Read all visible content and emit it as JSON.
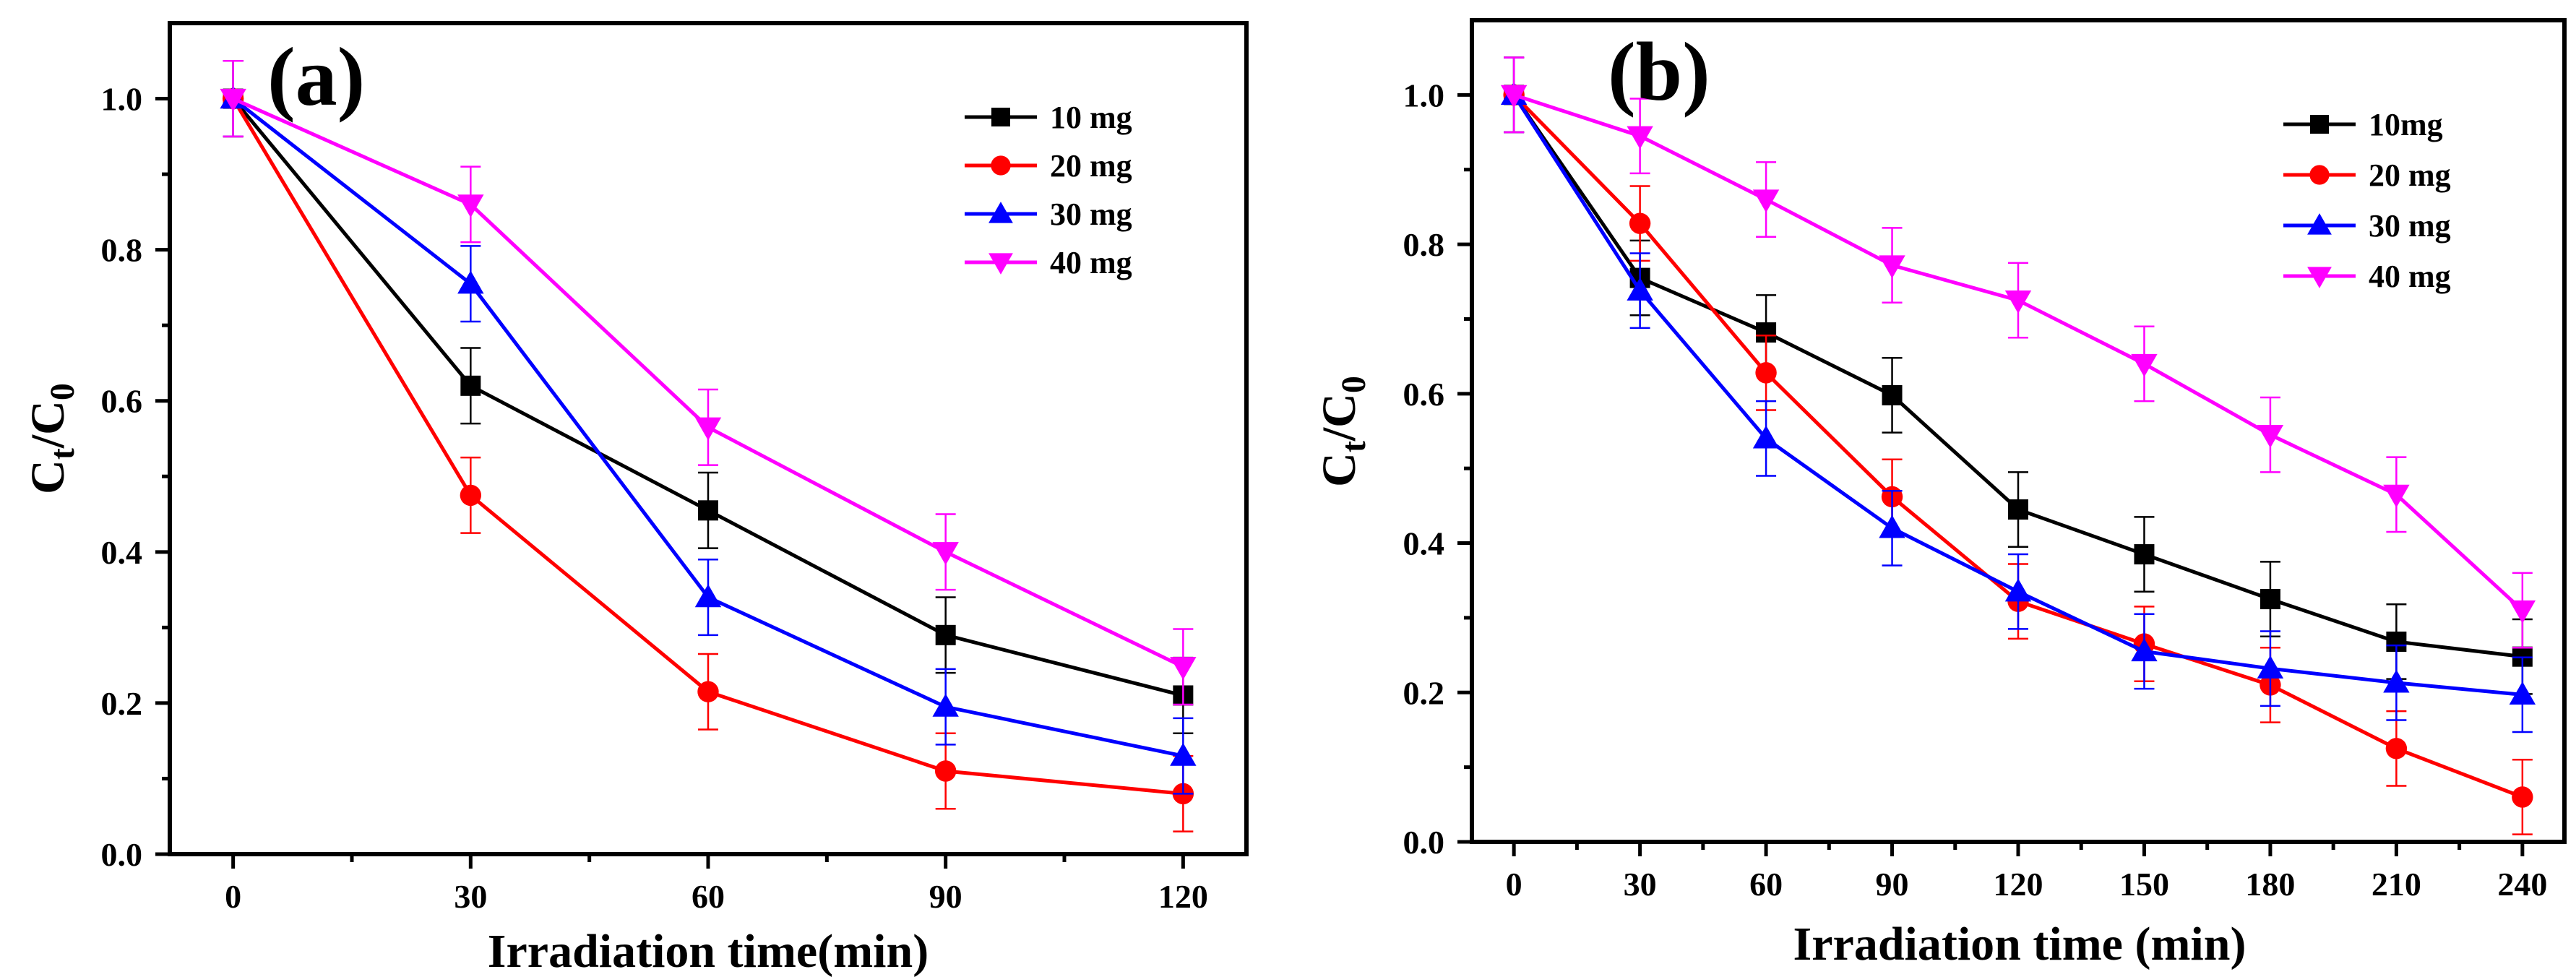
{
  "chart_data": [
    {
      "type": "line",
      "panel_label": "(a)",
      "xlabel": "Irradiation time(min)",
      "ylabel_main": "C",
      "ylabel_sub1": "t",
      "ylabel_mid": "/C",
      "ylabel_sub2": "0",
      "xlim": [
        -8,
        128
      ],
      "ylim": [
        0,
        1.1
      ],
      "xticks": [
        0,
        30,
        60,
        90,
        120
      ],
      "yticks": [
        0.0,
        0.2,
        0.4,
        0.6,
        0.8,
        1.0
      ],
      "legend_position": "top-right",
      "x": [
        0,
        30,
        60,
        90,
        120
      ],
      "series": [
        {
          "name": "10 mg",
          "color": "#000000",
          "marker": "square",
          "values": [
            1.0,
            0.62,
            0.455,
            0.29,
            0.21
          ],
          "errors": [
            0.05,
            0.05,
            0.05,
            0.05,
            0.05
          ]
        },
        {
          "name": "20 mg",
          "color": "#ff0000",
          "marker": "circle",
          "values": [
            1.0,
            0.475,
            0.215,
            0.11,
            0.08
          ],
          "errors": [
            0.05,
            0.05,
            0.05,
            0.05,
            0.05
          ]
        },
        {
          "name": "30 mg",
          "color": "#0000ff",
          "marker": "triangle-up",
          "values": [
            1.0,
            0.755,
            0.34,
            0.195,
            0.13
          ],
          "errors": [
            0.05,
            0.05,
            0.05,
            0.05,
            0.05
          ]
        },
        {
          "name": "40 mg",
          "color": "#ff00ff",
          "marker": "triangle-down",
          "values": [
            1.0,
            0.86,
            0.565,
            0.4,
            0.248
          ],
          "errors": [
            0.05,
            0.05,
            0.05,
            0.05,
            0.05
          ]
        }
      ]
    },
    {
      "type": "line",
      "panel_label": "(b)",
      "xlabel": "Irradiation time (min)",
      "ylabel_main": "C",
      "ylabel_sub1": "t",
      "ylabel_mid": "/C",
      "ylabel_sub2": "0",
      "xlim": [
        -10,
        250
      ],
      "ylim": [
        0,
        1.1
      ],
      "xticks": [
        0,
        30,
        60,
        90,
        120,
        150,
        180,
        210,
        240
      ],
      "yticks": [
        0.0,
        0.2,
        0.4,
        0.6,
        0.8,
        1.0
      ],
      "legend_position": "top-right",
      "x": [
        0,
        30,
        60,
        90,
        120,
        150,
        180,
        210,
        240
      ],
      "series": [
        {
          "name": "10mg",
          "color": "#000000",
          "marker": "square",
          "values": [
            1.0,
            0.755,
            0.682,
            0.598,
            0.445,
            0.385,
            0.325,
            0.268,
            0.248
          ],
          "errors": [
            0.05,
            0.05,
            0.05,
            0.05,
            0.05,
            0.05,
            0.05,
            0.05,
            0.05
          ]
        },
        {
          "name": "20 mg",
          "color": "#ff0000",
          "marker": "circle",
          "values": [
            1.0,
            0.828,
            0.628,
            0.462,
            0.322,
            0.265,
            0.21,
            0.125,
            0.06
          ],
          "errors": [
            0.05,
            0.05,
            0.05,
            0.05,
            0.05,
            0.05,
            0.05,
            0.05,
            0.05
          ]
        },
        {
          "name": "30 mg",
          "color": "#0000ff",
          "marker": "triangle-up",
          "values": [
            1.0,
            0.738,
            0.54,
            0.42,
            0.335,
            0.255,
            0.232,
            0.213,
            0.197
          ],
          "errors": [
            0.05,
            0.05,
            0.05,
            0.05,
            0.05,
            0.05,
            0.05,
            0.05,
            0.05
          ]
        },
        {
          "name": "40 mg",
          "color": "#ff00ff",
          "marker": "triangle-down",
          "values": [
            1.0,
            0.945,
            0.86,
            0.772,
            0.725,
            0.64,
            0.545,
            0.465,
            0.31
          ],
          "errors": [
            0.05,
            0.05,
            0.05,
            0.05,
            0.05,
            0.05,
            0.05,
            0.05,
            0.05
          ]
        }
      ]
    }
  ]
}
